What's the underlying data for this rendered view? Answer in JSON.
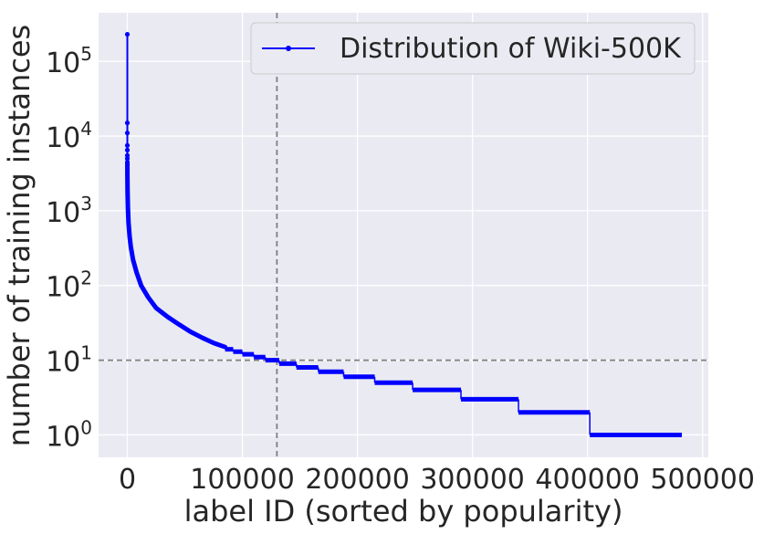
{
  "chart_data": {
    "type": "line",
    "title": "",
    "xlabel": "label ID (sorted by popularity)",
    "ylabel": "number of training instances",
    "xlim": [
      -25000,
      505000
    ],
    "ylim_log10": [
      -0.3,
      5.65
    ],
    "yscale": "log",
    "grid": true,
    "legend_position": "top-right",
    "xticks": [
      0,
      100000,
      200000,
      300000,
      400000,
      500000
    ],
    "xtick_labels": [
      "0",
      "100000",
      "200000",
      "300000",
      "400000",
      "500000"
    ],
    "ytick_exponents": [
      0,
      1,
      2,
      3,
      4,
      5
    ],
    "ytick_base": "10",
    "reference_lines": {
      "vertical_x": 130000,
      "horizontal_y": 10
    },
    "colors": {
      "series": "#0000ff",
      "reference": "#808080",
      "background": "#eaeaf2",
      "grid": "#ffffff"
    },
    "series": [
      {
        "name": "Distribution of Wiki-500K",
        "outliers": [
          [
            0,
            230000
          ],
          [
            1,
            15000
          ],
          [
            2,
            11000
          ],
          [
            3,
            7500
          ],
          [
            4,
            6500
          ],
          [
            5,
            5500
          ],
          [
            6,
            5000
          ]
        ],
        "curve": [
          [
            7,
            4500
          ],
          [
            50,
            3000
          ],
          [
            200,
            1800
          ],
          [
            500,
            1100
          ],
          [
            1000,
            700
          ],
          [
            2000,
            450
          ],
          [
            3000,
            330
          ],
          [
            5000,
            220
          ],
          [
            8000,
            150
          ],
          [
            12000,
            100
          ],
          [
            18000,
            70
          ],
          [
            25000,
            50
          ],
          [
            35000,
            38
          ],
          [
            45000,
            30
          ],
          [
            55000,
            24
          ],
          [
            65000,
            20
          ],
          [
            75000,
            17
          ],
          [
            85000,
            15
          ]
        ],
        "steps": [
          [
            85000,
            14
          ],
          [
            92000,
            13
          ],
          [
            100000,
            12
          ],
          [
            110000,
            11
          ],
          [
            120000,
            10
          ],
          [
            132000,
            9
          ],
          [
            147000,
            8
          ],
          [
            166000,
            7
          ],
          [
            188000,
            6
          ],
          [
            215000,
            5
          ],
          [
            248000,
            4
          ],
          [
            290000,
            3
          ],
          [
            340000,
            2
          ],
          [
            402000,
            1
          ],
          [
            482000,
            1
          ]
        ]
      }
    ]
  }
}
